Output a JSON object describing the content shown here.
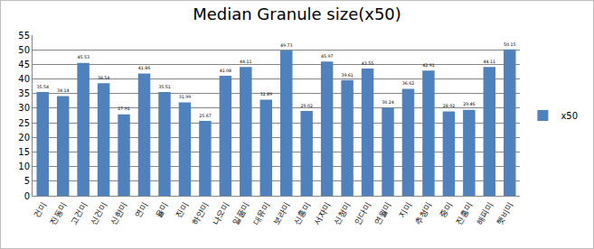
{
  "chart_data": {
    "type": "bar",
    "title": "Median Granule size(x50)",
    "categories": [
      "건미",
      "진동미",
      "고건미",
      "신건미",
      "신한미",
      "연미",
      "율미",
      "진미",
      "하얀미",
      "나오미",
      "일품미",
      "대유미",
      "보라미",
      "신홍미",
      "서자미",
      "신청미",
      "안다미",
      "연월미",
      "지미",
      "추청미",
      "중미",
      "진홍미",
      "해피미",
      "햇비미"
    ],
    "series": [
      {
        "name": "x50",
        "color": "#4F81BD",
        "values": [
          35.54,
          34.14,
          45.53,
          38.54,
          27.91,
          41.86,
          35.51,
          31.99,
          25.67,
          41.08,
          44.11,
          32.89,
          49.73,
          29.02,
          45.97,
          39.61,
          43.55,
          30.24,
          36.62,
          42.91,
          28.92,
          29.46,
          44.11,
          50.15
        ]
      }
    ],
    "ylim": [
      0,
      55
    ],
    "yticks": [
      0,
      5,
      10,
      15,
      20,
      25,
      30,
      35,
      40,
      45,
      50,
      55
    ],
    "grid": true,
    "legend": "right",
    "data_labels": true
  }
}
